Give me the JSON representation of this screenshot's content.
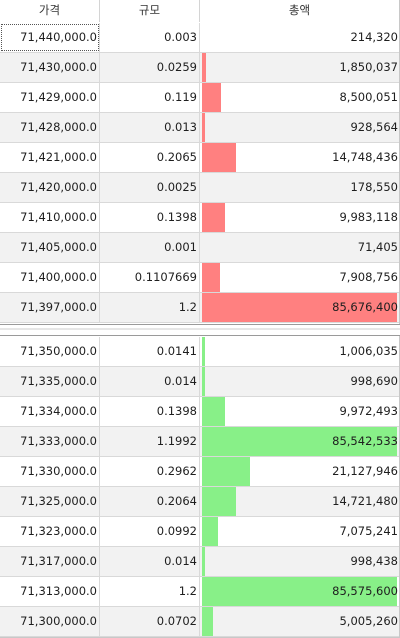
{
  "header": {
    "price_label": "가격",
    "size_label": "규모",
    "total_label": "총액"
  },
  "colors": {
    "ask_bar": "#ff8080",
    "bid_bar": "#88f088"
  },
  "max_total": 85676400,
  "asks": [
    {
      "price": "71,440,000.0",
      "size": "0.003",
      "total": "214,320",
      "total_value": 214320
    },
    {
      "price": "71,430,000.0",
      "size": "0.0259",
      "total": "1,850,037",
      "total_value": 1850037
    },
    {
      "price": "71,429,000.0",
      "size": "0.119",
      "total": "8,500,051",
      "total_value": 8500051
    },
    {
      "price": "71,428,000.0",
      "size": "0.013",
      "total": "928,564",
      "total_value": 928564
    },
    {
      "price": "71,421,000.0",
      "size": "0.2065",
      "total": "14,748,436",
      "total_value": 14748436
    },
    {
      "price": "71,420,000.0",
      "size": "0.0025",
      "total": "178,550",
      "total_value": 178550
    },
    {
      "price": "71,410,000.0",
      "size": "0.1398",
      "total": "9,983,118",
      "total_value": 9983118
    },
    {
      "price": "71,405,000.0",
      "size": "0.001",
      "total": "71,405",
      "total_value": 71405
    },
    {
      "price": "71,400,000.0",
      "size": "0.1107669",
      "total": "7,908,756",
      "total_value": 7908756
    },
    {
      "price": "71,397,000.0",
      "size": "1.2",
      "total": "85,676,400",
      "total_value": 85676400
    }
  ],
  "bids": [
    {
      "price": "71,350,000.0",
      "size": "0.0141",
      "total": "1,006,035",
      "total_value": 1006035
    },
    {
      "price": "71,335,000.0",
      "size": "0.014",
      "total": "998,690",
      "total_value": 998690
    },
    {
      "price": "71,334,000.0",
      "size": "0.1398",
      "total": "9,972,493",
      "total_value": 9972493
    },
    {
      "price": "71,333,000.0",
      "size": "1.1992",
      "total": "85,542,533",
      "total_value": 85542533
    },
    {
      "price": "71,330,000.0",
      "size": "0.2962",
      "total": "21,127,946",
      "total_value": 21127946
    },
    {
      "price": "71,325,000.0",
      "size": "0.2064",
      "total": "14,721,480",
      "total_value": 14721480
    },
    {
      "price": "71,323,000.0",
      "size": "0.0992",
      "total": "7,075,241",
      "total_value": 7075241
    },
    {
      "price": "71,317,000.0",
      "size": "0.014",
      "total": "998,438",
      "total_value": 998438
    },
    {
      "price": "71,313,000.0",
      "size": "1.2",
      "total": "85,575,600",
      "total_value": 85575600
    },
    {
      "price": "71,300,000.0",
      "size": "0.0702",
      "total": "5,005,260",
      "total_value": 5005260
    }
  ]
}
